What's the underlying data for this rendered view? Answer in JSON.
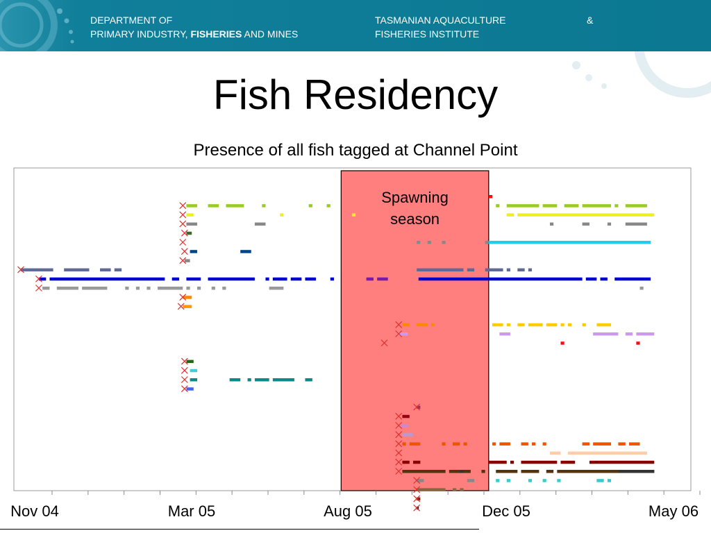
{
  "header": {
    "dept_line1": "DEPARTMENT OF",
    "dept_line2_pre": "PRIMARY INDUSTRY, ",
    "dept_line2_bold": "FISHERIES",
    "dept_line2_post": " AND MINES",
    "tafi_line1": "TASMANIAN AQUACULTURE",
    "tafi_line2": "FISHERIES INSTITUTE",
    "ampersand": "&",
    "banner_color": "#0f7e99"
  },
  "slide": {
    "title": "Fish Residency",
    "subtitle": "Presence of all fish tagged at Channel Point"
  },
  "chart_data": {
    "type": "scatter",
    "title": "Presence of all fish tagged at Channel Point",
    "x_ticks": [
      {
        "label": "Nov 04",
        "t": 0
      },
      {
        "label": "Mar 05",
        "t": 4
      },
      {
        "label": "Aug 05",
        "t": 9
      },
      {
        "label": "Dec 05",
        "t": 13
      },
      {
        "label": "May 06",
        "t": 18
      }
    ],
    "x_range_months": [
      0,
      18
    ],
    "minor_ticks_months": [
      0,
      1,
      2,
      3,
      4,
      5,
      6,
      7,
      8,
      9,
      10,
      11,
      12,
      13,
      14,
      15,
      16,
      17,
      18
    ],
    "shaded_region": {
      "label": "Spawning season",
      "label_line1": "Spawning",
      "label_line2": "season",
      "start_month": 8.9,
      "end_month": 13.0,
      "color": "#ff7f7f"
    },
    "tag_marker": "x",
    "tag_marker_color": "#e03030",
    "rows": 32,
    "series": [
      {
        "row": 0,
        "color": "#ee1111",
        "segments": [
          [
            13.0,
            13.1
          ]
        ]
      },
      {
        "row": 1,
        "color": "#99cc22",
        "tag": 4.5,
        "segments": [
          [
            4.6,
            4.9
          ],
          [
            5.2,
            5.5
          ],
          [
            5.7,
            6.2
          ],
          [
            6.7,
            6.8
          ],
          [
            8.0,
            8.1
          ],
          [
            8.5,
            8.6
          ],
          [
            13.2,
            13.3
          ],
          [
            13.5,
            14.4
          ],
          [
            14.5,
            14.9
          ],
          [
            15.1,
            15.5
          ],
          [
            15.6,
            16.4
          ],
          [
            16.5,
            16.6
          ],
          [
            16.8,
            17.4
          ]
        ]
      },
      {
        "row": 2,
        "color": "#eeee22",
        "tag": 4.5,
        "segments": [
          [
            4.6,
            4.8
          ],
          [
            7.2,
            7.3
          ],
          [
            9.2,
            9.3
          ],
          [
            13.5,
            13.7
          ],
          [
            13.8,
            17.6
          ]
        ]
      },
      {
        "row": 3,
        "color": "#888888",
        "tag": 4.5,
        "segments": [
          [
            4.6,
            4.9
          ],
          [
            6.5,
            6.8
          ],
          [
            14.7,
            14.8
          ],
          [
            15.6,
            15.8
          ],
          [
            16.3,
            16.4
          ],
          [
            16.8,
            17.4
          ]
        ]
      },
      {
        "row": 4,
        "color": "#3a6a2a",
        "tag": 4.55,
        "segments": [
          [
            4.6,
            4.75
          ]
        ]
      },
      {
        "row": 5,
        "color": "#888888",
        "segments": [
          [
            11.0,
            11.1
          ],
          [
            11.3,
            11.4
          ],
          [
            11.7,
            11.8
          ],
          [
            12.9,
            13.0
          ]
        ]
      },
      {
        "row": 5,
        "color": "#22ccee",
        "tag": 4.5,
        "segments": [
          [
            13.0,
            17.5
          ]
        ]
      },
      {
        "row": 6,
        "color": "#004488",
        "tag": 4.55,
        "segments": [
          [
            4.7,
            4.9
          ],
          [
            6.1,
            6.4
          ]
        ]
      },
      {
        "row": 7,
        "color": "#888888",
        "tag": 4.5,
        "segments": [
          [
            4.55,
            4.7
          ]
        ]
      },
      {
        "row": 8,
        "color": "#606a99",
        "tag": 0.0,
        "segments": [
          [
            0.0,
            0.9
          ],
          [
            1.2,
            1.9
          ],
          [
            2.2,
            2.5
          ],
          [
            2.6,
            2.8
          ],
          [
            11.0,
            12.3
          ],
          [
            12.4,
            12.6
          ],
          [
            12.9,
            13.4
          ],
          [
            13.5,
            13.6
          ],
          [
            13.8,
            14.0
          ],
          [
            14.1,
            14.2
          ]
        ]
      },
      {
        "row": 9,
        "color": "#0000cc",
        "tag": 0.5,
        "segments": [
          [
            0.5,
            0.7
          ],
          [
            0.8,
            4.0
          ],
          [
            4.2,
            4.4
          ],
          [
            4.6,
            5.0
          ],
          [
            5.2,
            6.5
          ],
          [
            6.8,
            6.9
          ],
          [
            7.0,
            7.4
          ],
          [
            7.5,
            7.8
          ],
          [
            7.9,
            8.2
          ],
          [
            8.6,
            8.7
          ],
          [
            11.05,
            15.6
          ],
          [
            15.7,
            16.0
          ],
          [
            16.1,
            16.3
          ],
          [
            16.5,
            17.5
          ]
        ]
      },
      {
        "row": 9,
        "color": "#7a1aa8",
        "segments": [
          [
            9.6,
            9.8
          ],
          [
            9.9,
            10.2
          ]
        ]
      },
      {
        "row": 10,
        "color": "#999999",
        "tag": 0.5,
        "segments": [
          [
            0.6,
            0.8
          ],
          [
            1.0,
            1.6
          ],
          [
            1.7,
            2.4
          ],
          [
            2.9,
            3.0
          ],
          [
            3.2,
            3.3
          ],
          [
            3.5,
            3.6
          ],
          [
            3.8,
            4.5
          ],
          [
            4.6,
            4.7
          ],
          [
            4.9,
            5.0
          ],
          [
            5.3,
            5.4
          ],
          [
            5.6,
            5.7
          ],
          [
            6.9,
            7.3
          ],
          [
            17.2,
            17.3
          ]
        ]
      },
      {
        "row": 11,
        "color": "#ff8800",
        "tag": 4.5,
        "segments": [
          [
            4.5,
            4.75
          ]
        ]
      },
      {
        "row": 12,
        "color": "#ff9900",
        "tag": 4.45,
        "segments": [
          [
            4.5,
            4.75
          ]
        ]
      },
      {
        "row": 14,
        "color": "#ff8800",
        "tag": 10.5,
        "segments": [
          [
            10.6,
            10.8
          ],
          [
            11.0,
            11.3
          ],
          [
            11.4,
            11.5
          ]
        ]
      },
      {
        "row": 14,
        "color": "#ffcc00",
        "segments": [
          [
            13.1,
            13.4
          ],
          [
            13.5,
            13.6
          ],
          [
            13.8,
            14.0
          ],
          [
            14.1,
            14.5
          ],
          [
            14.6,
            14.9
          ],
          [
            15.0,
            15.1
          ],
          [
            15.2,
            15.3
          ],
          [
            15.6,
            15.7
          ],
          [
            16.0,
            16.4
          ]
        ]
      },
      {
        "row": 15,
        "color": "#cc99ee",
        "tag": 10.5,
        "segments": [
          [
            10.5,
            10.75
          ],
          [
            13.3,
            13.6
          ],
          [
            15.9,
            16.6
          ],
          [
            16.8,
            17.0
          ],
          [
            17.1,
            17.6
          ]
        ]
      },
      {
        "row": 16,
        "color": "#ee1111",
        "tag": 10.1,
        "segments": [
          [
            15.0,
            15.1
          ],
          [
            17.1,
            17.2
          ]
        ]
      },
      {
        "row": 18,
        "color": "#226611",
        "tag": 4.55,
        "segments": [
          [
            4.6,
            4.8
          ]
        ]
      },
      {
        "row": 19,
        "color": "#44ccdd",
        "tag": 4.55,
        "segments": [
          [
            4.7,
            4.9
          ]
        ]
      },
      {
        "row": 20,
        "color": "#118888",
        "tag": 4.55,
        "segments": [
          [
            4.7,
            4.9
          ],
          [
            5.8,
            6.1
          ],
          [
            6.3,
            6.4
          ],
          [
            6.5,
            6.9
          ],
          [
            7.0,
            7.6
          ],
          [
            7.9,
            8.1
          ]
        ]
      },
      {
        "row": 21,
        "color": "#4466ee",
        "tag": 4.55,
        "segments": [
          [
            4.6,
            4.8
          ]
        ]
      },
      {
        "row": 23,
        "color": "#993355",
        "tag": 11.0,
        "segments": [
          [
            11.0,
            11.1
          ]
        ]
      },
      {
        "row": 24,
        "color": "#990011",
        "tag": 10.5,
        "segments": [
          [
            10.6,
            10.8
          ]
        ]
      },
      {
        "row": 25,
        "color": "#cc88cc",
        "tag": 10.5,
        "segments": [
          [
            10.55,
            10.75
          ]
        ]
      },
      {
        "row": 26,
        "color": "#bb99cc",
        "tag": 10.5,
        "segments": [
          [
            10.6,
            10.9
          ]
        ]
      },
      {
        "row": 27,
        "color": "#ee5500",
        "tag": 10.5,
        "segments": [
          [
            10.6,
            10.7
          ],
          [
            10.8,
            11.1
          ],
          [
            11.7,
            11.8
          ],
          [
            12.0,
            12.2
          ],
          [
            12.3,
            12.4
          ],
          [
            13.1,
            13.2
          ],
          [
            13.3,
            13.6
          ],
          [
            13.9,
            14.1
          ],
          [
            14.2,
            14.3
          ],
          [
            14.5,
            14.6
          ],
          [
            15.6,
            15.8
          ],
          [
            15.9,
            16.4
          ],
          [
            16.6,
            16.8
          ],
          [
            16.9,
            17.2
          ]
        ]
      },
      {
        "row": 28,
        "color": "#ffccaa",
        "tag": 10.5,
        "segments": [
          [
            14.7,
            15.0
          ],
          [
            15.2,
            17.4
          ]
        ]
      },
      {
        "row": 29,
        "color": "#880000",
        "tag": 10.5,
        "segments": [
          [
            10.6,
            10.8
          ],
          [
            10.9,
            11.1
          ],
          [
            13.0,
            13.5
          ],
          [
            13.6,
            13.7
          ],
          [
            13.9,
            14.9
          ],
          [
            15.0,
            15.4
          ],
          [
            15.8,
            17.6
          ]
        ]
      },
      {
        "row": 30,
        "color": "#553311",
        "tag": 10.5,
        "segments": [
          [
            10.6,
            11.8
          ],
          [
            11.9,
            12.5
          ],
          [
            12.8,
            12.9
          ],
          [
            13.2,
            13.8
          ],
          [
            13.9,
            14.4
          ],
          [
            14.6,
            14.8
          ],
          [
            14.9,
            17.6
          ]
        ]
      },
      {
        "row": 30,
        "color": "#333333",
        "segments": [
          [
            12.2,
            12.3
          ],
          [
            16.6,
            17.6
          ]
        ]
      },
      {
        "row": 31,
        "color": "#888888",
        "tag": 11.0,
        "segments": [
          [
            11.0,
            11.2
          ],
          [
            12.4,
            12.6
          ]
        ]
      },
      {
        "row": 31,
        "color": "#33cccc",
        "segments": [
          [
            13.2,
            13.3
          ],
          [
            13.5,
            13.6
          ],
          [
            14.1,
            14.2
          ],
          [
            14.5,
            14.6
          ],
          [
            14.9,
            15.0
          ],
          [
            16.0,
            16.2
          ],
          [
            16.3,
            16.4
          ]
        ]
      },
      {
        "row": 32,
        "color": "#886644",
        "tag": 11.0,
        "segments": [
          [
            11.0,
            11.8
          ],
          [
            12.0,
            12.1
          ],
          [
            12.2,
            12.3
          ]
        ]
      },
      {
        "row": 33,
        "color": "#882211",
        "tag": 11.0,
        "segments": [
          [
            11.0,
            11.1
          ]
        ]
      },
      {
        "row": 34,
        "color": "#222222",
        "tag": 11.0,
        "segments": [
          [
            11.0,
            11.05
          ]
        ]
      }
    ]
  }
}
